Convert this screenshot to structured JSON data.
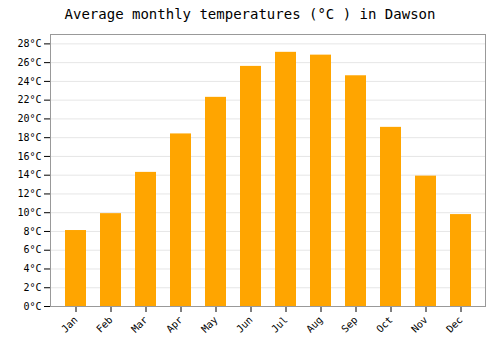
{
  "chart_data": {
    "type": "bar",
    "title": "Average monthly temperatures (°C ) in Dawson",
    "categories": [
      "Jan",
      "Feb",
      "Mar",
      "Apr",
      "May",
      "Jun",
      "Jul",
      "Aug",
      "Sep",
      "Oct",
      "Nov",
      "Dec"
    ],
    "values": [
      8.1,
      9.9,
      14.3,
      18.4,
      22.3,
      25.6,
      27.1,
      26.8,
      24.6,
      19.1,
      13.9,
      9.8
    ],
    "color": "#FFA500",
    "ylim": [
      0,
      29
    ],
    "yticks": [
      {
        "value": 0,
        "label": "0°C"
      },
      {
        "value": 2,
        "label": "2°C"
      },
      {
        "value": 4,
        "label": "4°C"
      },
      {
        "value": 6,
        "label": "6°C"
      },
      {
        "value": 8,
        "label": "8°C"
      },
      {
        "value": 10,
        "label": "10°C"
      },
      {
        "value": 12,
        "label": "12°C"
      },
      {
        "value": 14,
        "label": "14°C"
      },
      {
        "value": 16,
        "label": "16°C"
      },
      {
        "value": 18,
        "label": "18°C"
      },
      {
        "value": 20,
        "label": "20°C"
      },
      {
        "value": 22,
        "label": "22°C"
      },
      {
        "value": 24,
        "label": "24°C"
      },
      {
        "value": 26,
        "label": "26°C"
      },
      {
        "value": 28,
        "label": "28°C"
      }
    ],
    "grid": true
  }
}
